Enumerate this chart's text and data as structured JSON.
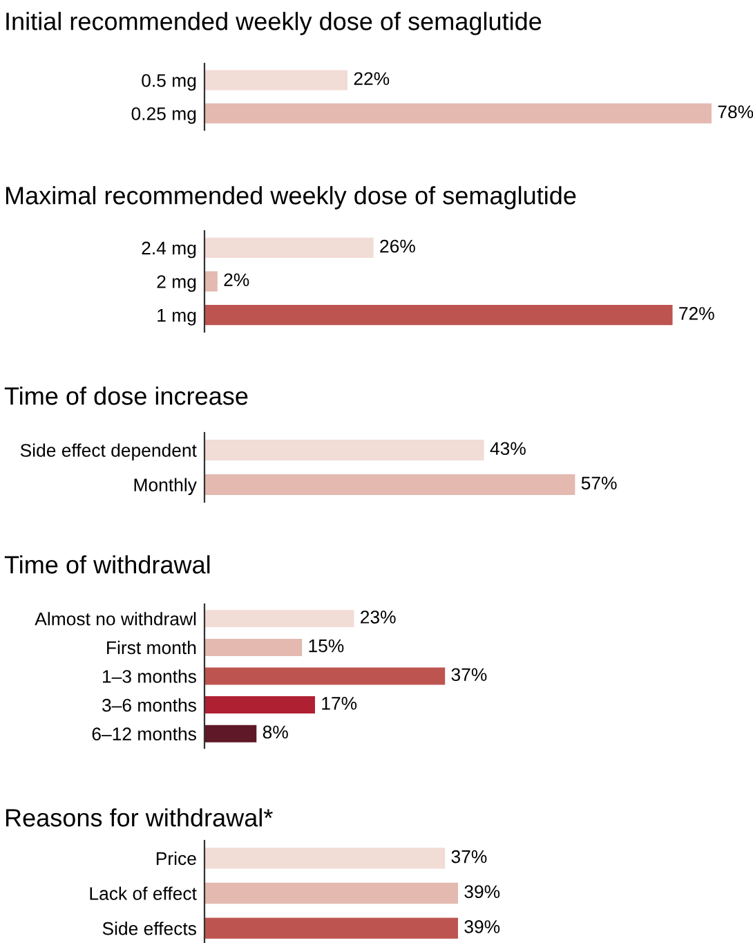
{
  "chart_data": [
    {
      "type": "bar",
      "orientation": "horizontal",
      "title": "Initial recommended weekly dose of semaglutide",
      "categories": [
        "0.5 mg",
        "0.25 mg"
      ],
      "values": [
        22,
        78
      ],
      "value_labels": [
        "22%",
        "78%"
      ],
      "colors": [
        "#f2dcd6",
        "#e3b9b0"
      ]
    },
    {
      "type": "bar",
      "orientation": "horizontal",
      "title": "Maximal recommended weekly dose of semaglutide",
      "categories": [
        "2.4 mg",
        "2 mg",
        "1 mg"
      ],
      "values": [
        26,
        2,
        72
      ],
      "value_labels": [
        "26%",
        "2%",
        "72%"
      ],
      "colors": [
        "#f2dcd6",
        "#e3b9b0",
        "#bd5450"
      ]
    },
    {
      "type": "bar",
      "orientation": "horizontal",
      "title": "Time of dose increase",
      "categories": [
        "Side effect dependent",
        "Monthly"
      ],
      "values": [
        43,
        57
      ],
      "value_labels": [
        "43%",
        "57%"
      ],
      "colors": [
        "#f2dcd6",
        "#e3b9b0"
      ]
    },
    {
      "type": "bar",
      "orientation": "horizontal",
      "title": "Time of withdrawal",
      "categories": [
        "Almost no withdrawl",
        "First month",
        "1–3 months",
        "3–6 months",
        "6–12 months"
      ],
      "values": [
        23,
        15,
        37,
        17,
        8
      ],
      "value_labels": [
        "23%",
        "15%",
        "37%",
        "17%",
        "8%"
      ],
      "colors": [
        "#f2dcd6",
        "#e3b9b0",
        "#bd5450",
        "#b02033",
        "#5e1827"
      ]
    },
    {
      "type": "bar",
      "orientation": "horizontal",
      "title": "Reasons for withdrawal*",
      "categories": [
        "Price",
        "Lack of effect",
        "Side effects"
      ],
      "values": [
        37,
        39,
        39
      ],
      "value_labels": [
        "37%",
        "39%",
        "39%"
      ],
      "colors": [
        "#f2dcd6",
        "#e3b9b0",
        "#bd5450"
      ]
    }
  ]
}
